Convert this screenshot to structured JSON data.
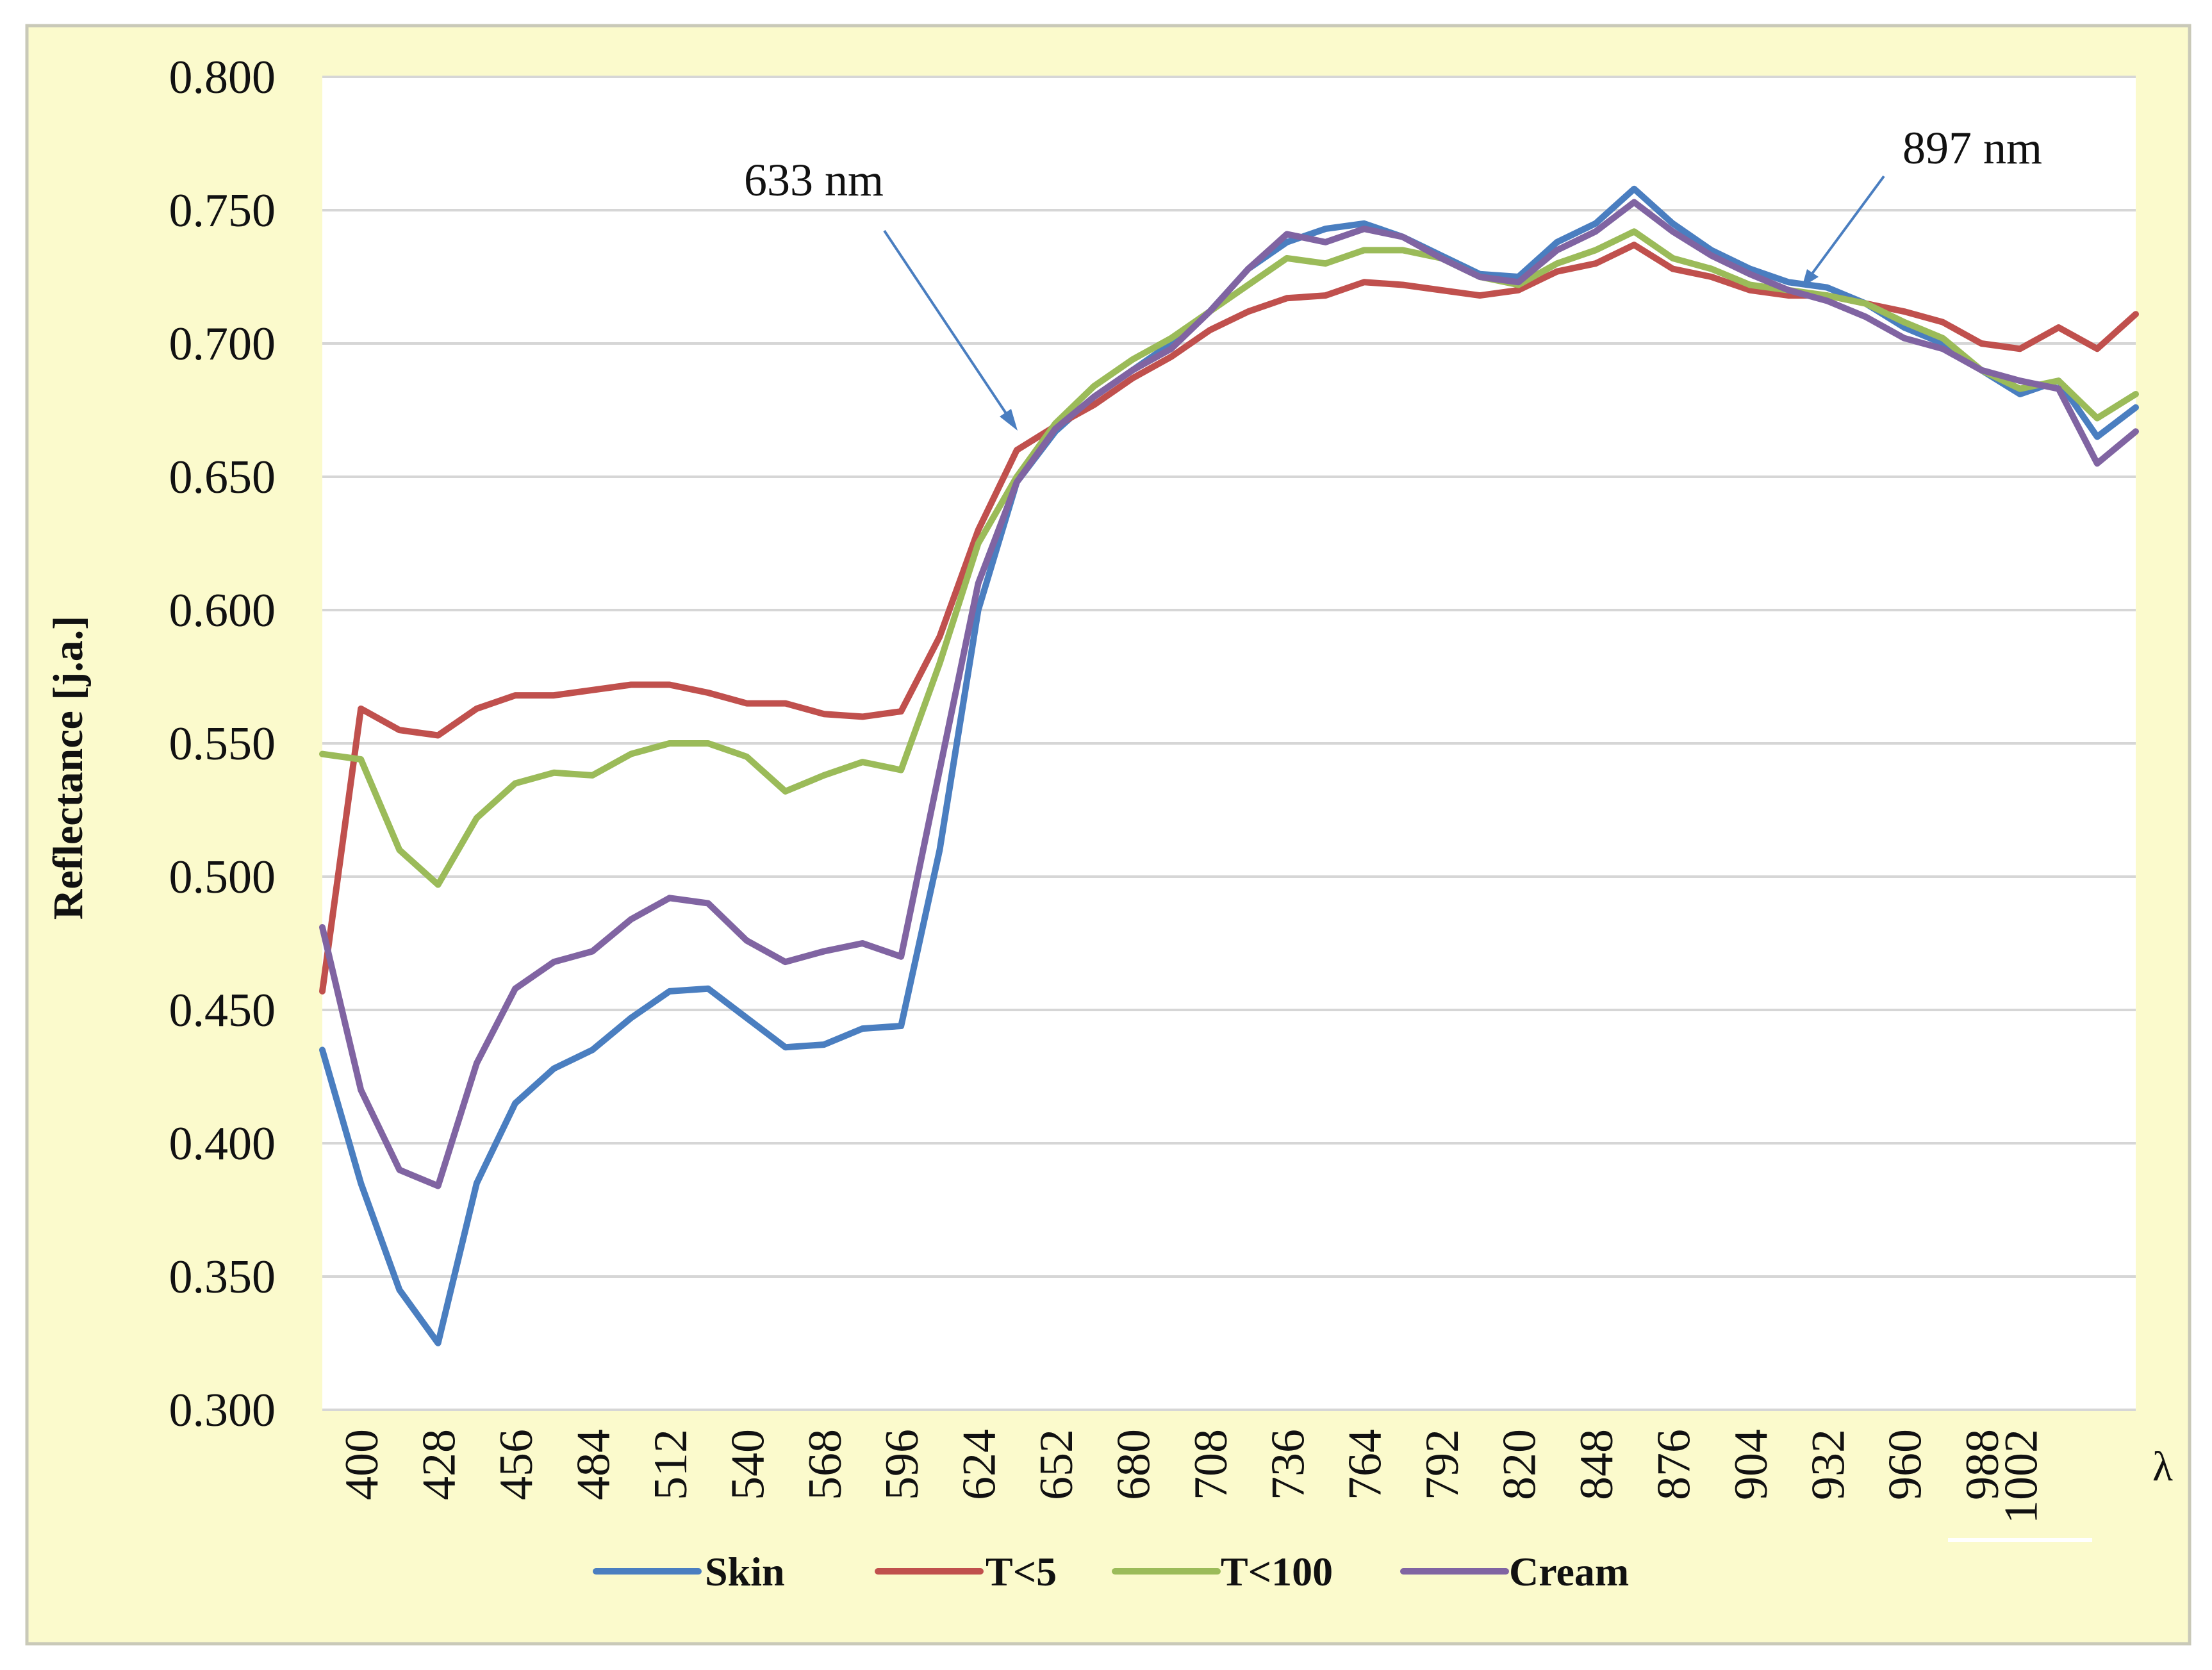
{
  "chart_data": {
    "type": "line",
    "title": "",
    "xlabel": "λ",
    "ylabel": "Reflectance [j.a.]",
    "xlim": [
      386,
      1044
    ],
    "ylim": [
      0.3,
      0.8
    ],
    "yticks": [
      "0.800",
      "0.750",
      "0.700",
      "0.650",
      "0.600",
      "0.550",
      "0.500",
      "0.450",
      "0.400",
      "0.350",
      "0.300"
    ],
    "xticks": [
      "400",
      "428",
      "456",
      "484",
      "512",
      "540",
      "568",
      "596",
      "624",
      "652",
      "680",
      "708",
      "736",
      "764",
      "792",
      "820",
      "848",
      "876",
      "904",
      "932",
      "960",
      "988",
      "1002"
    ],
    "grid": "horizontal",
    "legend_position": "bottom",
    "x": [
      386,
      400,
      414,
      428,
      442,
      456,
      470,
      484,
      498,
      512,
      526,
      540,
      554,
      568,
      582,
      596,
      610,
      624,
      638,
      652,
      666,
      680,
      694,
      708,
      722,
      736,
      750,
      764,
      778,
      792,
      806,
      820,
      834,
      848,
      862,
      876,
      890,
      904,
      918,
      932,
      946,
      960,
      974,
      988,
      1002,
      1016,
      1030,
      1044
    ],
    "series": [
      {
        "name": "Skin",
        "color": "#4a7ec0",
        "values": [
          0.435,
          0.385,
          0.345,
          0.325,
          0.385,
          0.415,
          0.428,
          0.435,
          0.447,
          0.457,
          0.458,
          0.447,
          0.436,
          0.437,
          0.443,
          0.444,
          0.51,
          0.6,
          0.648,
          0.667,
          0.68,
          0.69,
          0.7,
          0.712,
          0.728,
          0.738,
          0.743,
          0.745,
          0.74,
          0.733,
          0.726,
          0.725,
          0.738,
          0.745,
          0.758,
          0.745,
          0.735,
          0.728,
          0.723,
          0.721,
          0.715,
          0.706,
          0.7,
          0.69,
          0.681,
          0.686,
          0.665,
          0.676
        ]
      },
      {
        "name": "T<5",
        "color": "#c0504d",
        "values": [
          0.457,
          0.563,
          0.555,
          0.553,
          0.563,
          0.568,
          0.568,
          0.57,
          0.572,
          0.572,
          0.569,
          0.565,
          0.565,
          0.561,
          0.56,
          0.562,
          0.59,
          0.63,
          0.66,
          0.669,
          0.677,
          0.687,
          0.695,
          0.705,
          0.712,
          0.717,
          0.718,
          0.723,
          0.722,
          0.72,
          0.718,
          0.72,
          0.727,
          0.73,
          0.737,
          0.728,
          0.725,
          0.72,
          0.718,
          0.718,
          0.715,
          0.712,
          0.708,
          0.7,
          0.698,
          0.706,
          0.698,
          0.711
        ]
      },
      {
        "name": "T<100",
        "color": "#9bbb59",
        "values": [
          0.546,
          0.544,
          0.51,
          0.497,
          0.522,
          0.535,
          0.539,
          0.538,
          0.546,
          0.55,
          0.55,
          0.545,
          0.532,
          0.538,
          0.543,
          0.54,
          0.58,
          0.625,
          0.65,
          0.67,
          0.684,
          0.694,
          0.702,
          0.712,
          0.722,
          0.732,
          0.73,
          0.735,
          0.735,
          0.732,
          0.725,
          0.722,
          0.73,
          0.735,
          0.742,
          0.732,
          0.728,
          0.722,
          0.72,
          0.718,
          0.715,
          0.708,
          0.702,
          0.69,
          0.683,
          0.686,
          0.672,
          0.681
        ]
      },
      {
        "name": "Cream",
        "color": "#8064a2",
        "values": [
          0.481,
          0.42,
          0.39,
          0.384,
          0.43,
          0.458,
          0.468,
          0.472,
          0.484,
          0.492,
          0.49,
          0.476,
          0.468,
          0.472,
          0.475,
          0.47,
          0.54,
          0.61,
          0.648,
          0.668,
          0.68,
          0.69,
          0.698,
          0.712,
          0.728,
          0.741,
          0.738,
          0.743,
          0.74,
          0.732,
          0.725,
          0.723,
          0.735,
          0.742,
          0.753,
          0.742,
          0.733,
          0.726,
          0.72,
          0.716,
          0.71,
          0.702,
          0.698,
          0.69,
          0.686,
          0.683,
          0.655,
          0.667
        ]
      }
    ],
    "annotations": [
      {
        "text": "633 nm"
      },
      {
        "text": "897 nm"
      }
    ]
  }
}
